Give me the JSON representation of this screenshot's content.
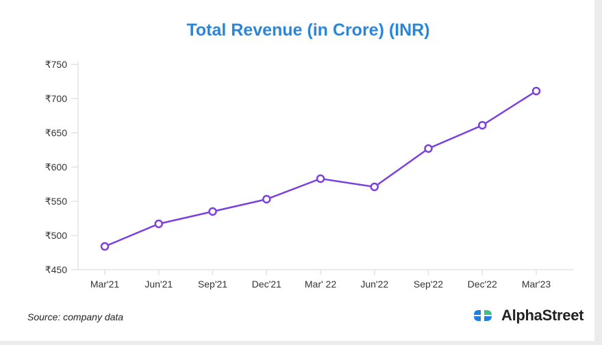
{
  "chart_data": {
    "type": "line",
    "title": "Total Revenue (in Crore) (INR)",
    "xlabel": "",
    "ylabel": "",
    "categories": [
      "Mar'21",
      "Jun'21",
      "Sep'21",
      "Dec'21",
      "Mar' 22",
      "Jun'22",
      "Sep'22",
      "Dec'22",
      "Mar'23"
    ],
    "series": [
      {
        "name": "Total Revenue",
        "values": [
          484,
          517,
          535,
          553,
          583,
          571,
          627,
          661,
          711
        ],
        "color": "#7b3fe0"
      }
    ],
    "ylim": [
      450,
      750
    ],
    "yticks": [
      450,
      500,
      550,
      600,
      650,
      700,
      750
    ],
    "ytick_labels": [
      "₹450",
      "₹500",
      "₹550",
      "₹600",
      "₹650",
      "₹700",
      "₹750"
    ],
    "grid": false,
    "legend": "none"
  },
  "footer": {
    "source": "Source: company data",
    "brand": "AlphaStreet"
  },
  "colors": {
    "title": "#2a86d8",
    "line": "#7b3fe0",
    "logo_blue": "#1e7fe0",
    "logo_green": "#3cc08a"
  }
}
